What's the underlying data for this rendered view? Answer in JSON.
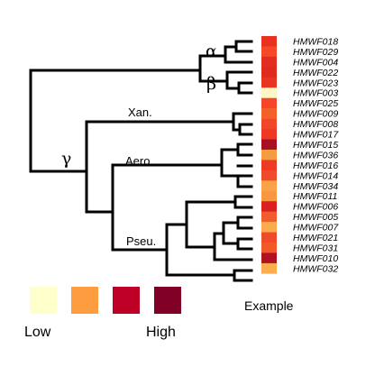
{
  "clade_labels": {
    "alpha": "α",
    "beta": "β",
    "gamma": "γ",
    "xan": "Xan.",
    "aero": "Aero.",
    "pseu": "Pseu."
  },
  "tips": [
    {
      "name": "HMWF018",
      "color": "#e8321f"
    },
    {
      "name": "HMWF029",
      "color": "#f6492a"
    },
    {
      "name": "HMWF004",
      "color": "#e32d20"
    },
    {
      "name": "HMWF022",
      "color": "#e02a1f"
    },
    {
      "name": "HMWF023",
      "color": "#e73520"
    },
    {
      "name": "HMWF003",
      "color": "#fff6c8"
    },
    {
      "name": "HMWF025",
      "color": "#f6462a"
    },
    {
      "name": "HMWF009",
      "color": "#f26228"
    },
    {
      "name": "HMWF008",
      "color": "#f2462a"
    },
    {
      "name": "HMWF017",
      "color": "#ee3824"
    },
    {
      "name": "HMWF015",
      "color": "#a80e24"
    },
    {
      "name": "HMWF036",
      "color": "#f59b40"
    },
    {
      "name": "HMWF016",
      "color": "#ee3a24"
    },
    {
      "name": "HMWF014",
      "color": "#f04a2a"
    },
    {
      "name": "HMWF034",
      "color": "#f8a346"
    },
    {
      "name": "HMWF011",
      "color": "#f99741"
    },
    {
      "name": "HMWF006",
      "color": "#da2120"
    },
    {
      "name": "HMWF005",
      "color": "#f25b2c"
    },
    {
      "name": "HMWF007",
      "color": "#fbab4c"
    },
    {
      "name": "HMWF021",
      "color": "#ef4a2a"
    },
    {
      "name": "HMWF031",
      "color": "#f3582b"
    },
    {
      "name": "HMWF010",
      "color": "#b21023"
    },
    {
      "name": "HMWF032",
      "color": "#fbae4f"
    }
  ],
  "heatmap_title": "Example",
  "legend": {
    "low_label": "Low",
    "high_label": "High",
    "swatches": [
      {
        "name": "very-low",
        "color": "#ffffcc"
      },
      {
        "name": "low",
        "color": "#fd9d40"
      },
      {
        "name": "high",
        "color": "#bf0026"
      },
      {
        "name": "very-high",
        "color": "#800026"
      }
    ]
  }
}
